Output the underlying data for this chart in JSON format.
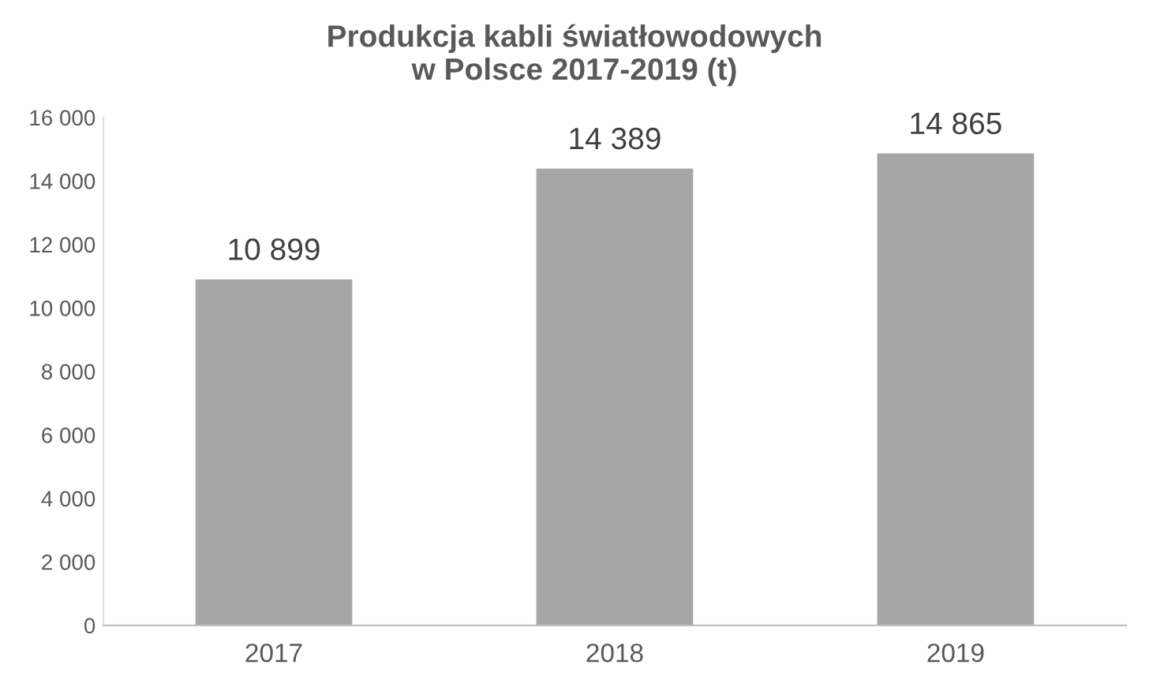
{
  "chart_data": {
    "type": "bar",
    "title": "Produkcja kabli światłowodowych\nw Polsce 2017-2019 (t)",
    "categories": [
      "2017",
      "2018",
      "2019"
    ],
    "values": [
      10899,
      14389,
      14865
    ],
    "value_labels": [
      "10 899",
      "14 389",
      "14 865"
    ],
    "color": "#a6a6a6",
    "ylim": [
      0,
      16000
    ],
    "yticks": [
      0,
      {
        "value": 2000,
        "label": "2 000"
      },
      {
        "value": 4000,
        "label": "4 000"
      },
      {
        "value": 6000,
        "label": "6 000"
      },
      {
        "value": 8000,
        "label": "8 000"
      },
      {
        "value": 10000,
        "label": "10 000"
      },
      {
        "value": 12000,
        "label": "12 000"
      },
      {
        "value": 14000,
        "label": "14 000"
      },
      {
        "value": 16000,
        "label": "16 000"
      }
    ],
    "grid": false,
    "legend": false
  }
}
